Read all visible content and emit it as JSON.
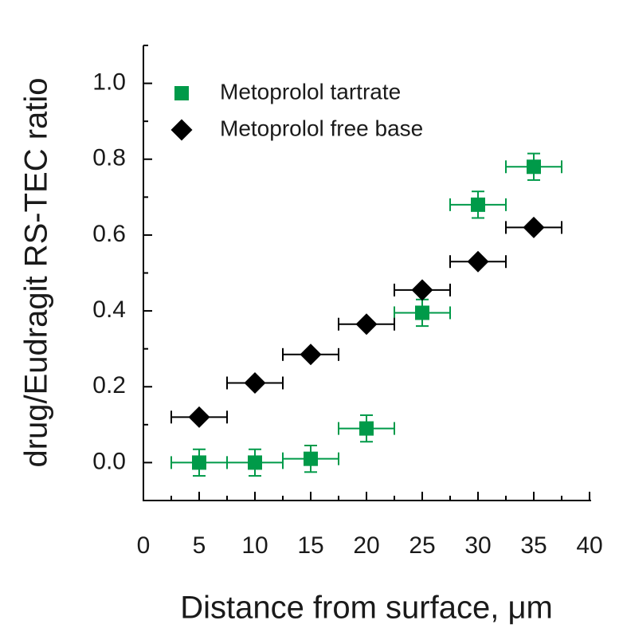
{
  "chart_data": {
    "type": "scatter",
    "x_label": "Distance from surface, μm",
    "y_label": "drug/Eudragit RS-TEC ratio",
    "xlim": [
      0,
      40
    ],
    "ylim": [
      -0.1,
      1.1
    ],
    "xticks": [
      0,
      5,
      10,
      15,
      20,
      25,
      30,
      35,
      40
    ],
    "yticks": [
      {
        "value": 0,
        "label": "0.0"
      },
      0.2,
      0.4,
      0.6,
      0.8,
      {
        "value": 1,
        "label": "1.0"
      }
    ],
    "xticks_minor": [
      2.5,
      7.5,
      12.5,
      17.5,
      22.5,
      27.5,
      32.5,
      37.5
    ],
    "yticks_minor": [
      -0.1,
      0.1,
      0.3,
      0.5,
      0.7,
      0.9,
      1.1
    ],
    "legend": "upper left",
    "series": [
      {
        "name": "Metoprolol tartrate",
        "color": "#009a49",
        "marker": "square",
        "x": [
          5,
          10,
          15,
          20,
          25,
          30,
          35
        ],
        "values": [
          0.0,
          0.0,
          0.01,
          0.09,
          0.395,
          0.68,
          0.78
        ],
        "x_err": [
          2.5,
          2.5,
          2.5,
          2.5,
          2.5,
          2.5,
          2.5
        ],
        "y_err": [
          0.035,
          0.035,
          0.035,
          0.035,
          0.035,
          0.035,
          0.035
        ]
      },
      {
        "name": "Metoprolol free base",
        "color": "#000000",
        "marker": "diamond",
        "x": [
          5,
          10,
          15,
          20,
          25,
          30,
          35
        ],
        "values": [
          0.12,
          0.21,
          0.285,
          0.365,
          0.455,
          0.53,
          0.62
        ],
        "x_err": [
          2.5,
          2.5,
          2.5,
          2.5,
          2.5,
          2.5,
          2.5
        ]
      }
    ]
  }
}
